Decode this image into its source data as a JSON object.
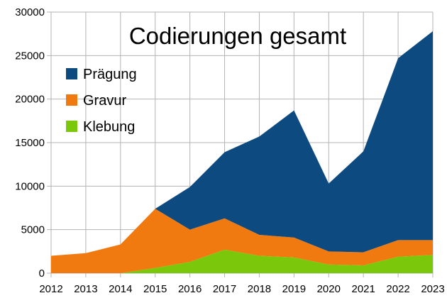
{
  "chart_data": {
    "type": "area",
    "stacked": true,
    "title": "Codierungen gesamt",
    "xlabel": "",
    "ylabel": "",
    "categories": [
      "2012",
      "2013",
      "2014",
      "2015",
      "2016",
      "2017",
      "2018",
      "2019",
      "2020",
      "2021",
      "2022",
      "2023"
    ],
    "ylim": [
      0,
      30000
    ],
    "yticks": [
      "0",
      "5000",
      "10000",
      "15000",
      "20000",
      "25000",
      "30000"
    ],
    "grid": true,
    "legend_position": "top-left",
    "series": [
      {
        "name": "Klebung",
        "color": "#7ac70c",
        "values": [
          0,
          0,
          0,
          600,
          1300,
          2700,
          2000,
          1800,
          1000,
          900,
          1900,
          2100
        ]
      },
      {
        "name": "Gravur",
        "color": "#f07a10",
        "values": [
          2000,
          2300,
          3300,
          6800,
          3700,
          3600,
          2400,
          2300,
          1500,
          1500,
          1900,
          1700
        ]
      },
      {
        "name": "Prägung",
        "color": "#0d4a80",
        "values": [
          0,
          0,
          0,
          0,
          4900,
          7600,
          11300,
          14600,
          7800,
          11600,
          20900,
          24000
        ]
      }
    ]
  }
}
